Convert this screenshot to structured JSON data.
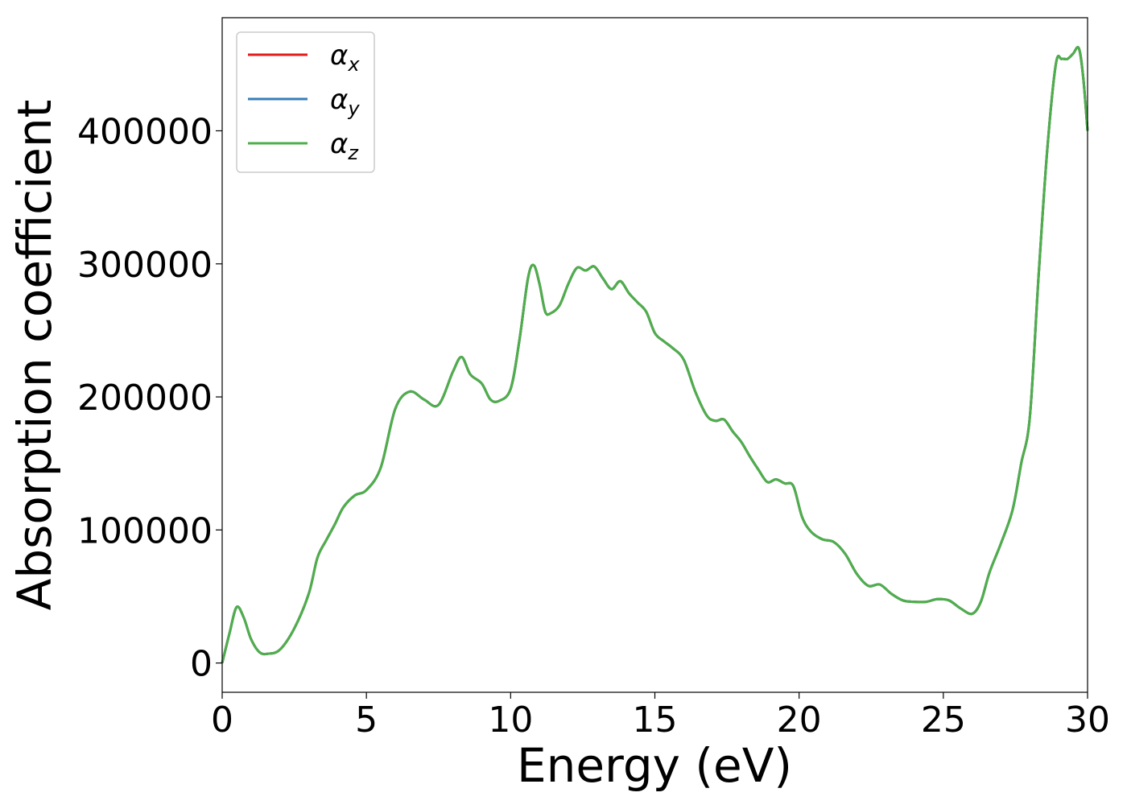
{
  "chart_data": {
    "type": "line",
    "title": "",
    "xlabel": "Energy (eV)",
    "ylabel": "Absorption coefficient",
    "xlim": [
      0,
      30
    ],
    "ylim": [
      -22000,
      485000
    ],
    "xticks": [
      0,
      5,
      10,
      15,
      20,
      25,
      30
    ],
    "xtick_labels": [
      "0",
      "5",
      "10",
      "15",
      "20",
      "25",
      "30"
    ],
    "yticks": [
      0,
      100000,
      200000,
      300000,
      400000
    ],
    "ytick_labels": [
      "0",
      "100000",
      "200000",
      "300000",
      "400000"
    ],
    "grid": false,
    "legend": {
      "placement": "top-left",
      "entries": [
        {
          "symbol": "α",
          "subscript": "x",
          "color": "#e41a1c"
        },
        {
          "symbol": "α",
          "subscript": "y",
          "color": "#377eb8"
        },
        {
          "symbol": "α",
          "subscript": "z",
          "color": "#4daf4a"
        }
      ]
    },
    "x": [
      0,
      0.25,
      0.5,
      0.75,
      1.0,
      1.3,
      1.6,
      2.0,
      2.5,
      3.0,
      3.3,
      3.6,
      3.9,
      4.2,
      4.6,
      5.0,
      5.5,
      6.0,
      6.5,
      7.0,
      7.5,
      8.0,
      8.3,
      8.6,
      9.0,
      9.3,
      9.6,
      10.0,
      10.3,
      10.6,
      10.8,
      11.0,
      11.2,
      11.4,
      11.7,
      12.0,
      12.3,
      12.6,
      12.9,
      13.2,
      13.5,
      13.8,
      14.1,
      14.4,
      14.7,
      15.0,
      15.3,
      15.6,
      16.0,
      16.4,
      16.8,
      17.1,
      17.4,
      17.7,
      18.0,
      18.3,
      18.6,
      18.9,
      19.2,
      19.5,
      19.8,
      20.1,
      20.4,
      20.8,
      21.2,
      21.6,
      22.0,
      22.4,
      22.8,
      23.2,
      23.6,
      24.0,
      24.4,
      24.8,
      25.2,
      25.6,
      26.0,
      26.3,
      26.6,
      27.0,
      27.4,
      27.7,
      28.0,
      28.3,
      28.6,
      28.9,
      29.1,
      29.3,
      29.5,
      29.7,
      29.85,
      30.0
    ],
    "series": [
      {
        "name": "αx",
        "color": "#e41a1c",
        "values": [
          0,
          22000,
          42000,
          34000,
          18000,
          8000,
          7000,
          10000,
          26000,
          52000,
          79000,
          92000,
          104000,
          117000,
          126000,
          130000,
          147000,
          191000,
          204000,
          198000,
          194000,
          219000,
          230000,
          217000,
          210000,
          198000,
          197000,
          206000,
          242000,
          289000,
          299000,
          285000,
          264000,
          263000,
          269000,
          285000,
          297000,
          295000,
          298000,
          289000,
          281000,
          287000,
          278000,
          271000,
          264000,
          248000,
          242000,
          237000,
          228000,
          204000,
          186000,
          182000,
          183000,
          174000,
          166000,
          155000,
          145000,
          136000,
          138000,
          135000,
          133000,
          110000,
          99000,
          93000,
          91000,
          82000,
          67000,
          58000,
          59000,
          52000,
          47000,
          46000,
          46000,
          48000,
          47000,
          41000,
          37000,
          46000,
          68000,
          90000,
          115000,
          150000,
          185000,
          290000,
          385000,
          450000,
          454000,
          454000,
          458000,
          462000,
          440000,
          400000
        ]
      },
      {
        "name": "αy",
        "color": "#377eb8",
        "values": [
          0,
          22000,
          42000,
          34000,
          18000,
          8000,
          7000,
          10000,
          26000,
          52000,
          79000,
          92000,
          104000,
          117000,
          126000,
          130000,
          147000,
          191000,
          204000,
          198000,
          194000,
          219000,
          230000,
          217000,
          210000,
          198000,
          197000,
          206000,
          242000,
          289000,
          299000,
          285000,
          264000,
          263000,
          269000,
          285000,
          297000,
          295000,
          298000,
          289000,
          281000,
          287000,
          278000,
          271000,
          264000,
          248000,
          242000,
          237000,
          228000,
          204000,
          186000,
          182000,
          183000,
          174000,
          166000,
          155000,
          145000,
          136000,
          138000,
          135000,
          133000,
          110000,
          99000,
          93000,
          91000,
          82000,
          67000,
          58000,
          59000,
          52000,
          47000,
          46000,
          46000,
          48000,
          47000,
          41000,
          37000,
          46000,
          68000,
          90000,
          115000,
          150000,
          185000,
          290000,
          385000,
          450000,
          454000,
          454000,
          458000,
          462000,
          440000,
          400000
        ]
      },
      {
        "name": "αz",
        "color": "#4daf4a",
        "values": [
          0,
          22000,
          42000,
          34000,
          18000,
          8000,
          7000,
          10000,
          26000,
          52000,
          79000,
          92000,
          104000,
          117000,
          126000,
          130000,
          147000,
          191000,
          204000,
          198000,
          194000,
          219000,
          230000,
          217000,
          210000,
          198000,
          197000,
          206000,
          242000,
          289000,
          299000,
          285000,
          264000,
          263000,
          269000,
          285000,
          297000,
          295000,
          298000,
          289000,
          281000,
          287000,
          278000,
          271000,
          264000,
          248000,
          242000,
          237000,
          228000,
          204000,
          186000,
          182000,
          183000,
          174000,
          166000,
          155000,
          145000,
          136000,
          138000,
          135000,
          133000,
          110000,
          99000,
          93000,
          91000,
          82000,
          67000,
          58000,
          59000,
          52000,
          47000,
          46000,
          46000,
          48000,
          47000,
          41000,
          37000,
          46000,
          68000,
          90000,
          115000,
          150000,
          185000,
          290000,
          385000,
          450000,
          454000,
          454000,
          458000,
          462000,
          440000,
          400000
        ]
      }
    ]
  }
}
